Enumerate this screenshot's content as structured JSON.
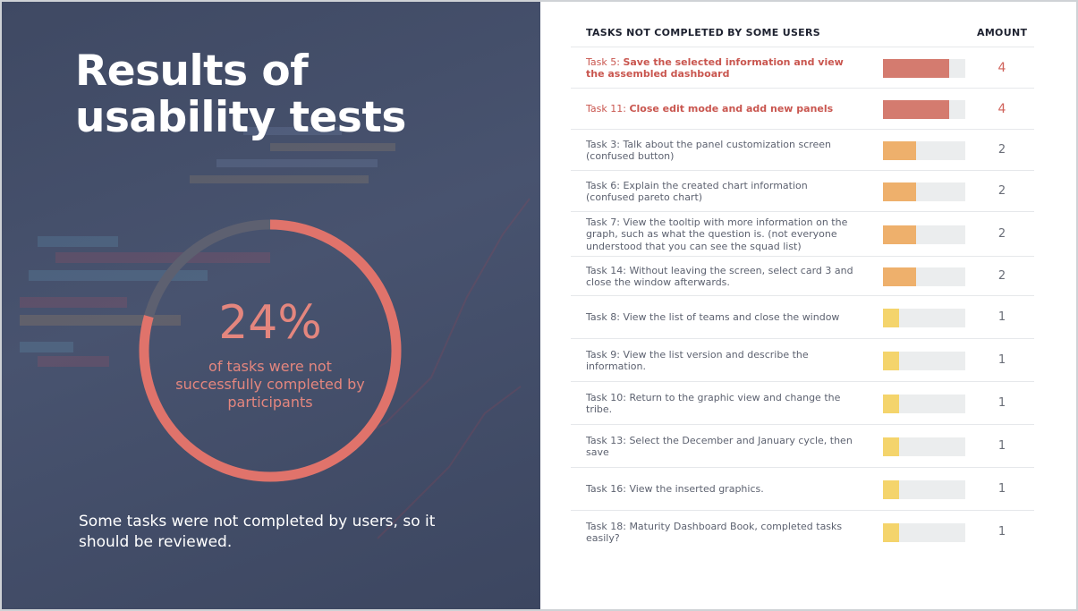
{
  "left": {
    "title_line1": "Results of",
    "title_line2": "usability tests",
    "percent_label": "24%",
    "percent_caption": "of tasks were not successfully completed by participants",
    "footnote": "Some tasks were not completed by users, so it should be reviewed."
  },
  "table": {
    "header_task": "TASKS NOT COMPLETED BY SOME USERS",
    "header_amount": "AMOUNT"
  },
  "colors": {
    "high": "#d47b6f",
    "medium": "#eeb06c",
    "low": "#f4d46c",
    "ring_fail": "#e0736b",
    "ring_rest": "#5d6070"
  },
  "chart_data": {
    "type": "bar",
    "donut_value_percent": 24,
    "max_value": 5,
    "categories": [
      {
        "name": "Task 5:",
        "desc": "Save the selected information and view the assembled dashboard",
        "value": 4,
        "highlight": true,
        "level": "high"
      },
      {
        "name": "Task 11:",
        "desc": "Close edit mode and add new panels",
        "value": 4,
        "highlight": true,
        "level": "high"
      },
      {
        "name": "Task 3:",
        "desc": "Talk about the panel customization screen (confused button)",
        "value": 2,
        "highlight": false,
        "level": "medium"
      },
      {
        "name": "Task 6:",
        "desc": "Explain the created chart information (confused pareto chart)",
        "value": 2,
        "highlight": false,
        "level": "medium"
      },
      {
        "name": "Task 7:",
        "desc": "View the tooltip with more information on the graph, such as what the question is. (not everyone understood that you can see the squad list)",
        "value": 2,
        "highlight": false,
        "level": "medium"
      },
      {
        "name": "Task 14:",
        "desc": "Without leaving the screen, select card 3 and close the window afterwards.",
        "value": 2,
        "highlight": false,
        "level": "medium"
      },
      {
        "name": "Task 8:",
        "desc": "View the list of teams and close the window",
        "value": 1,
        "highlight": false,
        "level": "low"
      },
      {
        "name": "Task 9:",
        "desc": "View the list version and describe the information.",
        "value": 1,
        "highlight": false,
        "level": "low"
      },
      {
        "name": "Task 10:",
        "desc": "Return to the graphic view and change the tribe.",
        "value": 1,
        "highlight": false,
        "level": "low"
      },
      {
        "name": "Task 13:",
        "desc": "Select the December and January cycle, then save",
        "value": 1,
        "highlight": false,
        "level": "low"
      },
      {
        "name": "Task 16:",
        "desc": "View the inserted graphics.",
        "value": 1,
        "highlight": false,
        "level": "low"
      },
      {
        "name": "Task 18:",
        "desc": "Maturity Dashboard Book, completed tasks easily?",
        "value": 1,
        "highlight": false,
        "level": "low"
      }
    ]
  }
}
